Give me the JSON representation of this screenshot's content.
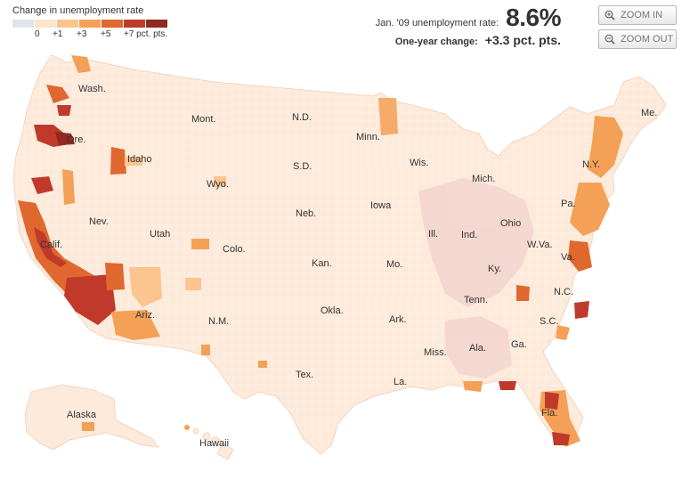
{
  "legend": {
    "title": "Change in unemployment rate",
    "colors": [
      "#dfe4ee",
      "#fde4cc",
      "#fcc48e",
      "#f4a056",
      "#e0682f",
      "#c0392b",
      "#8e2a20"
    ],
    "ticks": [
      "0",
      "+1",
      "+3",
      "+5",
      "+7 pct. pts."
    ]
  },
  "stats": {
    "rate_label": "Jan. '09 unemployment rate:",
    "rate_value": "8.6%",
    "change_label": "One-year change:",
    "change_value": "+3.3 pct. pts."
  },
  "controls": {
    "zoom_in": "ZOOM IN",
    "zoom_out": "ZOOM OUT"
  },
  "map": {
    "land_color": "#fdeadb",
    "border_color": "#ffffff",
    "state_labels": [
      "Wash.",
      "Ore.",
      "Idaho",
      "Mont.",
      "Wyo.",
      "N.D.",
      "S.D.",
      "Minn.",
      "Wis.",
      "Mich.",
      "Nev.",
      "Calif.",
      "Utah",
      "Colo.",
      "Neb.",
      "Iowa",
      "Ill.",
      "Ind.",
      "Ohio",
      "Pa.",
      "N.Y.",
      "Me.",
      "Kan.",
      "Mo.",
      "Ky.",
      "W.Va.",
      "Va.",
      "N.C.",
      "Tenn.",
      "S.C.",
      "Ariz.",
      "N.M.",
      "Okla.",
      "Ark.",
      "Miss.",
      "Ala.",
      "Ga.",
      "Tex.",
      "La.",
      "Fla.",
      "Alaska",
      "Hawaii"
    ]
  }
}
